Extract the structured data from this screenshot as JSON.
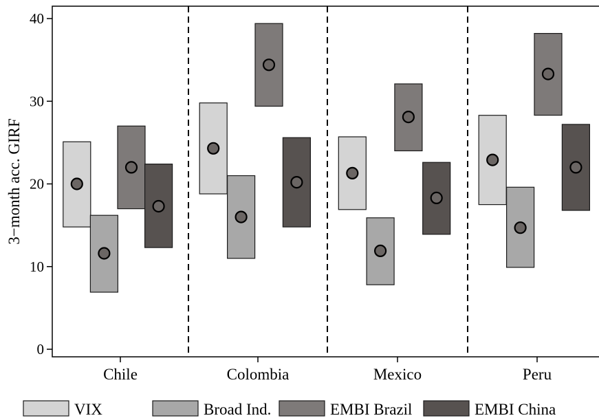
{
  "chart_data": {
    "type": "range-bar",
    "ylabel": "3−month acc. GIRF",
    "xlabel": "",
    "ylim": [
      -1,
      41.5
    ],
    "yticks": [
      "0",
      "10",
      "20",
      "30",
      "40"
    ],
    "grid": false,
    "legend_position": "bottom",
    "categories": [
      "Chile",
      "Colombia",
      "Mexico",
      "Peru"
    ],
    "series": [
      {
        "name": "VIX",
        "color": "#d4d4d4",
        "lower": [
          14.8,
          18.8,
          16.9,
          17.5
        ],
        "upper": [
          25.1,
          29.8,
          25.7,
          28.3
        ],
        "point": [
          20.0,
          24.3,
          21.3,
          22.9
        ]
      },
      {
        "name": "Broad Ind.",
        "color": "#a8a8a8",
        "lower": [
          6.9,
          11.0,
          7.8,
          9.9
        ],
        "upper": [
          16.2,
          21.0,
          15.9,
          19.6
        ],
        "point": [
          11.6,
          16.0,
          11.9,
          14.7
        ]
      },
      {
        "name": "EMBI Brazil",
        "color": "#7e7a79",
        "lower": [
          17.0,
          29.4,
          24.0,
          28.3
        ],
        "upper": [
          27.0,
          39.4,
          32.1,
          38.2
        ],
        "point": [
          22.0,
          34.4,
          28.1,
          33.3
        ]
      },
      {
        "name": "EMBI China",
        "color": "#575250",
        "lower": [
          12.3,
          14.8,
          13.9,
          16.8
        ],
        "upper": [
          22.4,
          25.6,
          22.6,
          27.2
        ],
        "point": [
          17.3,
          20.2,
          18.3,
          22.0
        ]
      }
    ]
  }
}
